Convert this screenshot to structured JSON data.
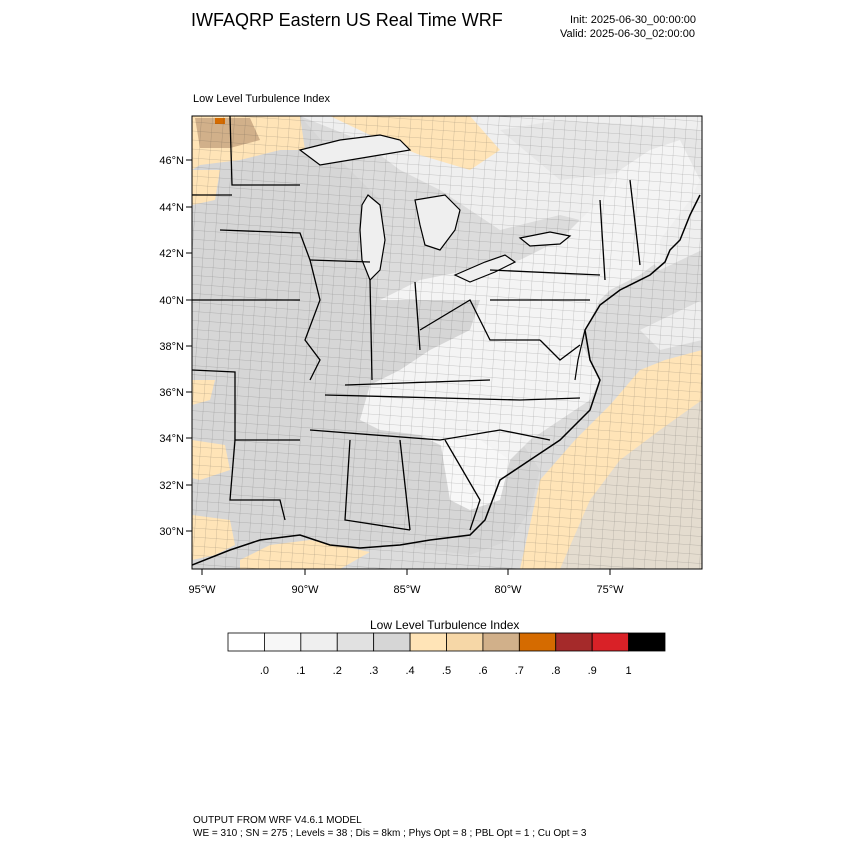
{
  "header": {
    "title": "IWFAQRP Eastern US Real Time WRF",
    "init": "Init: 2025-06-30_00:00:00",
    "valid": "Valid: 2025-06-30_02:00:00"
  },
  "map": {
    "field_label": "Low Level Turbulence Index",
    "lat_labels": [
      "46°N",
      "44°N",
      "42°N",
      "40°N",
      "38°N",
      "36°N",
      "34°N",
      "32°N",
      "30°N"
    ],
    "lon_labels": [
      "95°W",
      "90°W",
      "85°W",
      "80°W",
      "75°W"
    ]
  },
  "colorbar": {
    "title": "Low Level Turbulence Index",
    "colors": [
      "#ffffff",
      "#f7f7f7",
      "#efefef",
      "#e1e1e1",
      "#d6d6d6",
      "#ffe4b7",
      "#f6d7a7",
      "#d1b08a",
      "#d56b00",
      "#a52a2a",
      "#d92127",
      "#000000"
    ],
    "tick_labels": [
      ".0",
      ".1",
      ".2",
      ".3",
      ".4",
      ".5",
      ".6",
      ".7",
      ".8",
      ".9",
      "1"
    ]
  },
  "footer": {
    "line1": "OUTPUT FROM WRF V4.6.1 MODEL",
    "line2": "WE = 310 ; SN = 275 ; Levels = 38 ; Dis = 8km ; Phys Opt = 8 ; PBL Opt = 1 ; Cu Opt = 3"
  }
}
